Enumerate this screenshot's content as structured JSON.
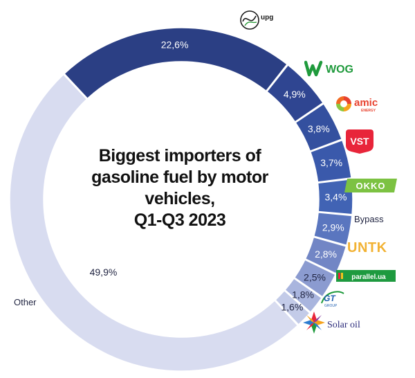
{
  "chart_data": {
    "type": "pie",
    "donut": true,
    "title": [
      "Biggest importers of",
      "gasoline fuel by motor",
      "vehicles,",
      "Q1-Q3 2023"
    ],
    "categories": [
      "UPG",
      "WOG",
      "AMIC Energy",
      "VST",
      "OKKO",
      "Bypass",
      "UNTK",
      "parallel.ua",
      "GT Group",
      "Solar oil",
      "Other"
    ],
    "values": [
      22.6,
      4.9,
      3.8,
      3.7,
      3.4,
      2.9,
      2.8,
      2.5,
      1.8,
      1.6,
      49.9
    ],
    "value_labels": [
      "22,6%",
      "4,9%",
      "3,8%",
      "3,7%",
      "3,4%",
      "2,9%",
      "2,8%",
      "2,5%",
      "1,8%",
      "1,6%",
      "49,9%"
    ],
    "colors": [
      "#2b3f84",
      "#2f4591",
      "#34509f",
      "#3a59ab",
      "#4163b4",
      "#5a76bf",
      "#7286c5",
      "#8b9bd0",
      "#a9b5de",
      "#c3cbe8",
      "#d8dcf0"
    ],
    "legend": "logos placed outside the ring, next to each slice",
    "outside_labels": {
      "other": "Other",
      "bypass": "Bypass"
    }
  },
  "logos": {
    "upg": "upg",
    "wog": "WOG",
    "amic": "amic",
    "amic_sub": "ENERGY",
    "vst": "VST",
    "okko": "OKKO",
    "untk": "UNTK",
    "parallel": "parallel.ua",
    "gt": "GT",
    "gt_sub": "GROUP",
    "solar": "Solar oil"
  }
}
